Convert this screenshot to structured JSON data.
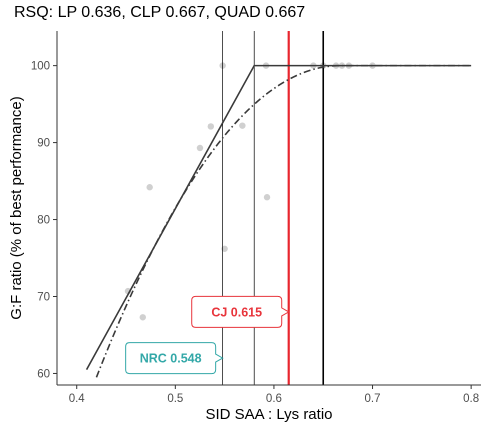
{
  "chart_data": {
    "type": "scatter",
    "title": "RSQ: LP 0.636, CLP 0.667, QUAD 0.667",
    "xlabel": "SID SAA : Lys ratio",
    "ylabel": "G:F ratio (% of best performance)",
    "xlim": [
      0.38,
      0.81
    ],
    "ylim": [
      58.5,
      104.5
    ],
    "xticks": [
      0.4,
      0.5,
      0.6,
      0.7,
      0.8
    ],
    "xtick_labels": [
      "0.4",
      "0.5",
      "0.6",
      "0.7",
      "0.8"
    ],
    "yticks": [
      60,
      70,
      80,
      90,
      100
    ],
    "ytick_labels": [
      "60",
      "70",
      "80",
      "90",
      "100"
    ],
    "grid": false,
    "points": [
      {
        "x": 0.452,
        "y": 70.7
      },
      {
        "x": 0.467,
        "y": 67.3
      },
      {
        "x": 0.474,
        "y": 84.2
      },
      {
        "x": 0.525,
        "y": 89.3
      },
      {
        "x": 0.536,
        "y": 92.1
      },
      {
        "x": 0.548,
        "y": 100.0
      },
      {
        "x": 0.55,
        "y": 76.2
      },
      {
        "x": 0.568,
        "y": 92.2
      },
      {
        "x": 0.592,
        "y": 100.0
      },
      {
        "x": 0.593,
        "y": 82.9
      },
      {
        "x": 0.64,
        "y": 100.0
      },
      {
        "x": 0.65,
        "y": 100.0
      },
      {
        "x": 0.663,
        "y": 100.0
      },
      {
        "x": 0.669,
        "y": 100.0
      },
      {
        "x": 0.676,
        "y": 100.0
      },
      {
        "x": 0.7,
        "y": 100.0
      }
    ],
    "lp_line": [
      {
        "x": 0.41,
        "y": 60.5
      },
      {
        "x": 0.58,
        "y": 100.0
      },
      {
        "x": 0.8,
        "y": 100.0
      }
    ],
    "quad_curve": {
      "x_start": 0.42,
      "x_vertex": 0.667,
      "x_end": 0.8,
      "y_at_start": 59.5,
      "y_plateau": 100.0
    },
    "vlines": [
      {
        "x": 0.548,
        "color": "#000000",
        "width": 0.7
      },
      {
        "x": 0.58,
        "color": "#000000",
        "width": 0.7
      },
      {
        "x": 0.615,
        "color": "#e8262e",
        "width": 2.2
      },
      {
        "x": 0.65,
        "color": "#000000",
        "width": 1.6
      }
    ],
    "callouts": [
      {
        "text": "CJ 0.615",
        "color": "#e8343b",
        "x": 0.615,
        "y": 68.0
      },
      {
        "text": "NRC 0.548",
        "color": "#33a8a8",
        "x": 0.548,
        "y": 62.0
      }
    ],
    "colors": {
      "points": "#d0d0d0",
      "fit": "#3a3a3a",
      "axis": "#333333"
    }
  }
}
